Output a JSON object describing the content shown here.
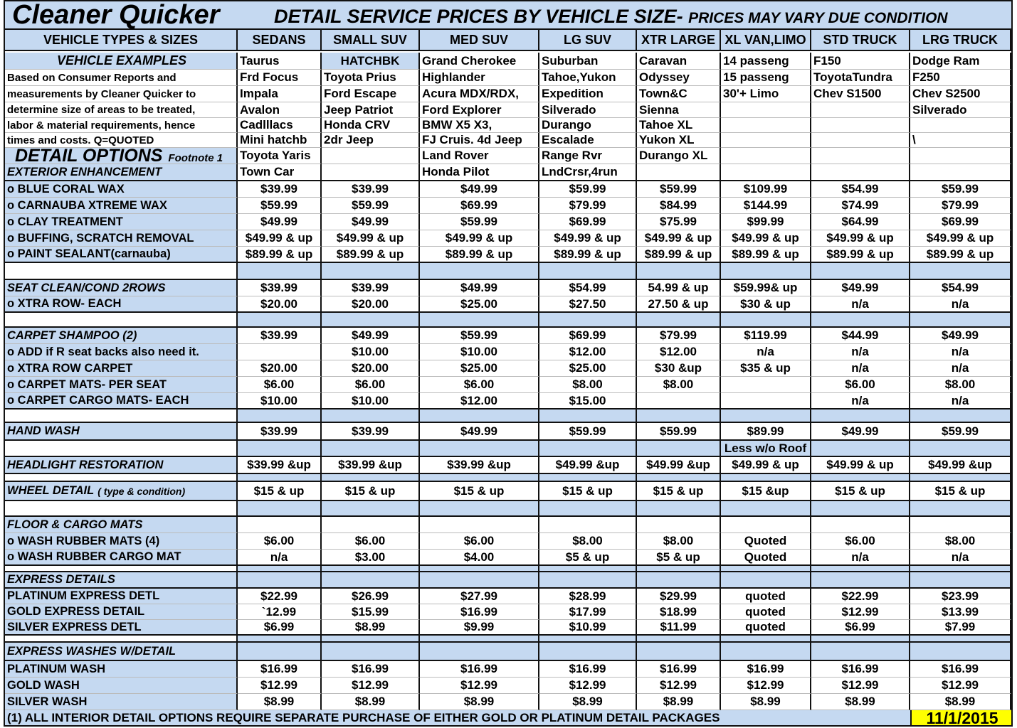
{
  "title": {
    "brand": "Cleaner Quicker",
    "headline": "DETAIL SERVICE PRICES BY VEHICLE SIZE-",
    "subheadline": "PRICES MAY VARY DUE CONDITION"
  },
  "columns": [
    "VEHICLE TYPES & SIZES",
    "SEDANS",
    "SMALL SUV",
    "MED SUV",
    "LG SUV",
    "XTR LARGE",
    "XL VAN,LIMO",
    "STD TRUCK",
    "LRG TRUCK"
  ],
  "rows": [
    {
      "label": "VEHICLE EXAMPLES",
      "values": [
        "Taurus",
        "HATCHBK",
        "Grand Cherokee",
        "Suburban",
        "Caravan",
        "14 passeng",
        "F150",
        "Dodge Ram"
      ]
    },
    {
      "label": "Based on Consumer Reports and",
      "values": [
        "Frd Focus",
        "Toyota Prius",
        "Highlander",
        "Tahoe,Yukon",
        "Odyssey",
        "15 passeng",
        "ToyotaTundra",
        "F250"
      ]
    },
    {
      "label": "measurements by Cleaner Quicker to",
      "values": [
        "Impala",
        " Ford Escape",
        "Acura MDX/RDX,",
        "Expedition",
        "Town&C",
        "30'+ Limo",
        "Chev S1500",
        "Chev S2500"
      ]
    },
    {
      "label": "determine size of areas to be treated,",
      "values": [
        "Avalon",
        "Jeep Patriot",
        "Ford Explorer",
        "Silverado",
        "Sienna",
        "",
        "",
        "Silverado"
      ]
    },
    {
      "label": "labor & material  requirements, hence",
      "values": [
        "Cadlllacs",
        "Honda CRV",
        "BMW X5 X3,",
        "Durango",
        "Tahoe XL",
        "",
        "",
        ""
      ]
    },
    {
      "label": "times and costs.  Q=QUOTED",
      "values": [
        "Mini hatchb",
        "2dr Jeep",
        "FJ Cruis. 4d Jeep",
        "Escalade",
        "Yukon XL",
        "",
        "",
        "\\"
      ]
    },
    {
      "label": "DETAIL OPTIONS",
      "footnote": "Footnote 1",
      "values": [
        "Toyota Yaris",
        "",
        "Land Rover",
        "Range Rvr",
        "Durango XL",
        "",
        "",
        ""
      ]
    },
    {
      "label": "EXTERIOR ENHANCEMENT",
      "values": [
        "Town Car",
        "",
        "Honda Pilot",
        "LndCrsr,4run",
        "",
        "",
        "",
        ""
      ]
    },
    {
      "label": "o BLUE CORAL WAX",
      "values": [
        "$39.99",
        "$39.99",
        "$49.99",
        "$59.99",
        "$59.99",
        "$109.99",
        "$54.99",
        "$59.99"
      ]
    },
    {
      "label": "o CARNAUBA XTREME WAX",
      "values": [
        "$59.99",
        "$59.99",
        "$69.99",
        "$79.99",
        "$84.99",
        "$144.99",
        "$74.99",
        "$79.99"
      ]
    },
    {
      "label": "o CLAY TREATMENT",
      "values": [
        "$49.99",
        "$49.99",
        "$59.99",
        "$69.99",
        "$75.99",
        "$99.99",
        "$64.99",
        "$69.99"
      ]
    },
    {
      "label": "o BUFFING, SCRATCH REMOVAL",
      "values": [
        "$49.99 & up",
        "$49.99 & up",
        "$49.99 & up",
        "$49.99 & up",
        "$49.99 & up",
        "$49.99 & up",
        "$49.99 & up",
        "$49.99 & up"
      ]
    },
    {
      "label": "o PAINT SEALANT(carnauba)",
      "values": [
        "$89.99 & up",
        "$89.99 & up",
        "$89.99 & up",
        "$89.99 & up",
        "$89.99 & up",
        "$89.99 & up",
        "$89.99 & up",
        "$89.99 & up"
      ]
    },
    {
      "label": "",
      "values": [
        "",
        "",
        "",
        "",
        "",
        "",
        "",
        ""
      ]
    },
    {
      "label": "SEAT CLEAN/COND 2ROWS",
      "values": [
        "$39.99",
        "$39.99",
        "$49.99",
        "$54.99",
        "54.99 & up",
        "$59.99& up",
        "$49.99",
        "$54.99"
      ]
    },
    {
      "label": " o XTRA ROW- EACH",
      "values": [
        "$20.00",
        "$20.00",
        "$25.00",
        "$27.50",
        "27.50 & up",
        "$30 & up",
        "n/a",
        "n/a"
      ]
    },
    {
      "label": "",
      "values": [
        "",
        "",
        "",
        "",
        "",
        "",
        "",
        ""
      ]
    },
    {
      "label": "CARPET SHAMPOO (2)",
      "values": [
        "$39.99",
        "$49.99",
        "$59.99",
        "$69.99",
        "$79.99",
        "$119.99",
        "$44.99",
        "$49.99"
      ]
    },
    {
      "label": "o ADD if R seat backs also need it.",
      "values": [
        "",
        "$10.00",
        "$10.00",
        "$12.00",
        "$12.00",
        "n/a",
        "n/a",
        "n/a"
      ]
    },
    {
      "label": "o XTRA ROW CARPET",
      "values": [
        "$20.00",
        "$20.00",
        "$25.00",
        "$25.00",
        "$30 &up",
        "$35 & up",
        "n/a",
        "n/a"
      ]
    },
    {
      "label": "o CARPET MATS- PER SEAT",
      "values": [
        "$6.00",
        "$6.00",
        "$6.00",
        "$8.00",
        "$8.00",
        "",
        "$6.00",
        "$8.00"
      ]
    },
    {
      "label": "o CARPET CARGO MATS- EACH",
      "values": [
        "$10.00",
        "$10.00",
        "$12.00",
        "$15.00",
        "",
        "",
        "n/a",
        "n/a"
      ]
    },
    {
      "label": "",
      "values": [
        "",
        "",
        "",
        "",
        "",
        "",
        "",
        ""
      ]
    },
    {
      "label": "HAND WASH",
      "values": [
        "$39.99",
        "$39.99",
        "$49.99",
        "$59.99",
        "$59.99",
        "$89.99",
        "$49.99",
        "$59.99"
      ]
    },
    {
      "label": "",
      "values": [
        "",
        "",
        "",
        "",
        "",
        "Less w/o Roof",
        "",
        ""
      ]
    },
    {
      "label": "HEADLIGHT RESTORATION",
      "values": [
        "$39.99 &up",
        "$39.99 &up",
        "$39.99 &up",
        "$49.99 &up",
        "$49.99 &up",
        "$49.99 & up",
        "$49.99 & up",
        "$49.99 &up"
      ]
    },
    {
      "label": "",
      "values": [
        "",
        "",
        "",
        "",
        "",
        "",
        "",
        ""
      ]
    },
    {
      "label": "WHEEL DETAIL",
      "note": "( type & condition)",
      "values": [
        "$15 & up",
        "$15 & up",
        "$15 & up",
        "$15 & up",
        "$15 & up",
        "$15 &up",
        "$15 & up",
        "$15 & up"
      ]
    },
    {
      "label": "",
      "values": [
        "",
        "",
        "",
        "",
        "",
        "",
        "",
        ""
      ]
    },
    {
      "label": "FLOOR & CARGO MATS",
      "values": [
        "",
        "",
        "",
        "",
        "",
        "",
        "",
        ""
      ]
    },
    {
      "label": " o WASH RUBBER MATS (4)",
      "values": [
        "$6.00",
        "$6.00",
        "$6.00",
        "$8.00",
        "$8.00",
        "Quoted",
        "$6.00",
        "$8.00"
      ]
    },
    {
      "label": " o WASH RUBBER CARGO MAT",
      "values": [
        "n/a",
        "$3.00",
        "$4.00",
        "$5 & up",
        "$5 & up",
        "Quoted",
        "n/a",
        "n/a"
      ]
    },
    {
      "label": "",
      "values": [
        "",
        "",
        "",
        "",
        "",
        "",
        "",
        ""
      ]
    },
    {
      "label": "EXPRESS DETAILS",
      "values": [
        "",
        "",
        "",
        "",
        "",
        "",
        "",
        ""
      ]
    },
    {
      "label": "PLATINUM EXPRESS DETL",
      "values": [
        "$22.99",
        "$26.99",
        "$27.99",
        "$28.99",
        "$29.99",
        "quoted",
        "$22.99",
        "$23.99"
      ]
    },
    {
      "label": "GOLD EXPRESS DETAIL",
      "values": [
        "`12.99",
        "$15.99",
        "$16.99",
        "$17.99",
        "$18.99",
        "quoted",
        "$12.99",
        "$13.99"
      ]
    },
    {
      "label": "SILVER EXPRESS DETL",
      "values": [
        "$6.99",
        "$8.99",
        "$9.99",
        "$10.99",
        "$11.99",
        "quoted",
        "$6.99",
        "$7.99"
      ]
    },
    {
      "label": "",
      "values": [
        "",
        "",
        "",
        "",
        "",
        "",
        "",
        ""
      ]
    },
    {
      "label": "EXPRESS WASHES W/DETAIL",
      "values": [
        "",
        "",
        "",
        "",
        "",
        "",
        "",
        ""
      ]
    },
    {
      "label": "PLATINUM WASH",
      "values": [
        "$16.99",
        "$16.99",
        "$16.99",
        "$16.99",
        "$16.99",
        "$16.99",
        "$16.99",
        "$16.99"
      ]
    },
    {
      "label": "GOLD WASH",
      "values": [
        "$12.99",
        "$12.99",
        "$12.99",
        "$12.99",
        "$12.99",
        "$12.99",
        "$12.99",
        "$12.99"
      ]
    },
    {
      "label": "SILVER WASH",
      "values": [
        "$8.99",
        "$8.99",
        "$8.99",
        "$8.99",
        "$8.99",
        "$8.99",
        "$8.99",
        "$8.99"
      ]
    }
  ],
  "footer": {
    "note": "(1) ALL INTERIOR DETAIL OPTIONS REQUIRE SEPARATE PURCHASE OF EITHER GOLD OR PLATINUM DETAIL PACKAGES",
    "date": "11/1/2015"
  },
  "colors": {
    "header_blue": "#c5d9f1",
    "date_highlight": "#ffff00"
  }
}
